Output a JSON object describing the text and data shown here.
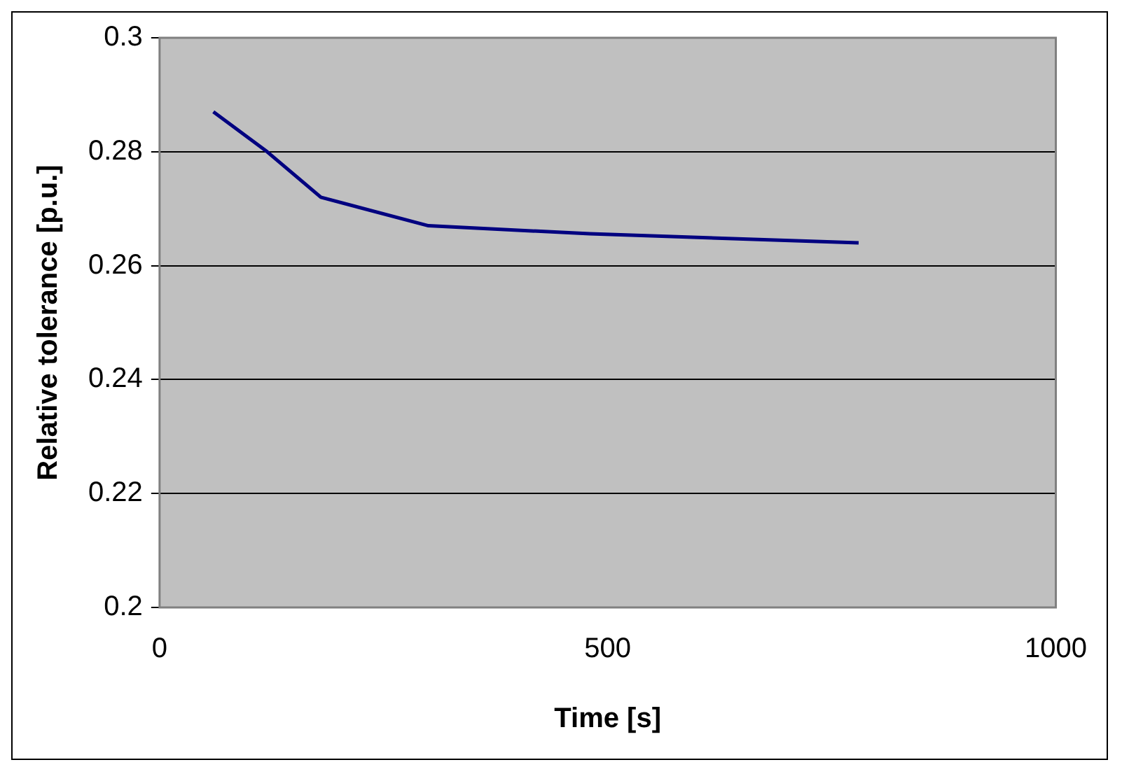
{
  "chart_data": {
    "type": "line",
    "xlabel": "Time [s]",
    "ylabel": "Relative tolerance [p.u.]",
    "x": [
      60,
      120,
      180,
      300,
      480,
      780
    ],
    "series": [
      {
        "color": "#000080",
        "values": [
          0.287,
          0.28,
          0.272,
          0.267,
          0.2656,
          0.264
        ]
      }
    ],
    "xlim": [
      0,
      1000
    ],
    "xticks": [
      0,
      500,
      1000
    ],
    "ylim": [
      0.2,
      0.3
    ],
    "yticks": [
      0.2,
      0.22,
      0.24,
      0.26,
      0.28,
      0.3
    ],
    "grid": "y",
    "legend": false,
    "marker": "none",
    "line_style": "solid"
  }
}
